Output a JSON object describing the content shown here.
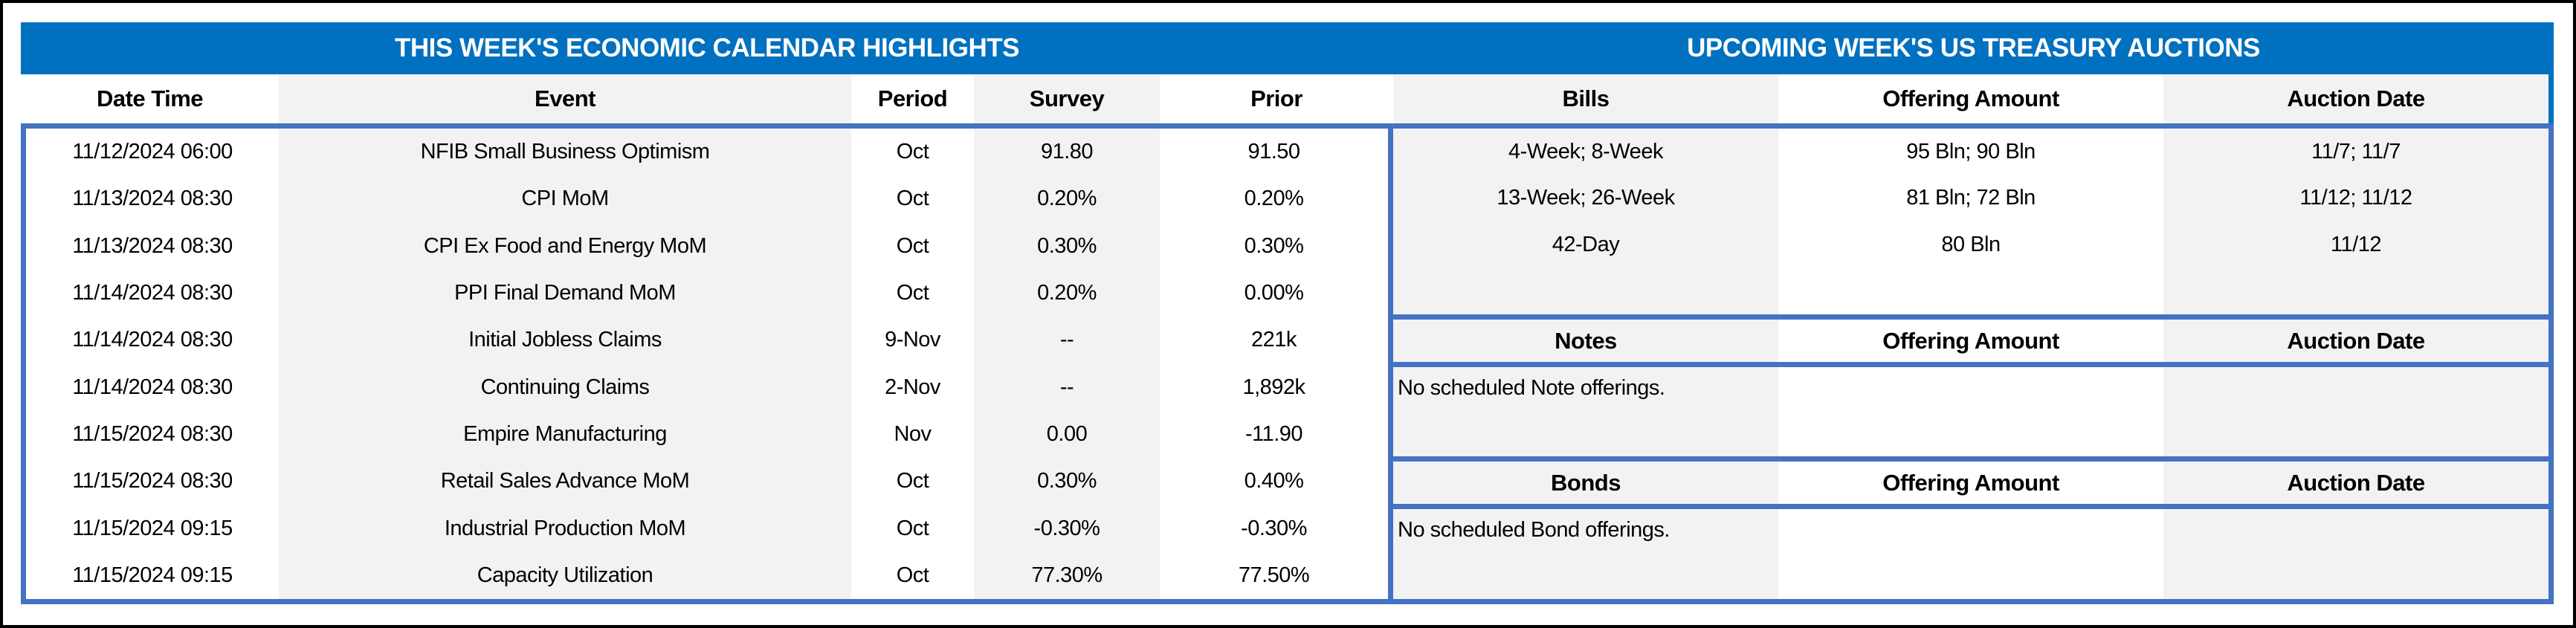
{
  "colors": {
    "title_bar": "#0070C0",
    "border_blue": "#4472C4",
    "stripe_gray": "#F2F2F2",
    "outer_border": "#000000"
  },
  "left_table": {
    "title": "THIS WEEK'S ECONOMIC CALENDAR HIGHLIGHTS",
    "columns": [
      "Date Time",
      "Event",
      "Period",
      "Survey",
      "Prior"
    ],
    "rows": [
      [
        "11/12/2024 06:00",
        "NFIB Small Business Optimism",
        "Oct",
        "91.80",
        "91.50"
      ],
      [
        "11/13/2024 08:30",
        "CPI MoM",
        "Oct",
        "0.20%",
        "0.20%"
      ],
      [
        "11/13/2024 08:30",
        "CPI Ex Food and Energy MoM",
        "Oct",
        "0.30%",
        "0.30%"
      ],
      [
        "11/14/2024 08:30",
        "PPI Final Demand MoM",
        "Oct",
        "0.20%",
        "0.00%"
      ],
      [
        "11/14/2024 08:30",
        "Initial Jobless Claims",
        "9-Nov",
        "--",
        "221k"
      ],
      [
        "11/14/2024 08:30",
        "Continuing Claims",
        "2-Nov",
        "--",
        "1,892k"
      ],
      [
        "11/15/2024 08:30",
        "Empire Manufacturing",
        "Nov",
        "0.00",
        "-11.90"
      ],
      [
        "11/15/2024 08:30",
        "Retail Sales Advance MoM",
        "Oct",
        "0.30%",
        "0.40%"
      ],
      [
        "11/15/2024 09:15",
        "Industrial Production MoM",
        "Oct",
        "-0.30%",
        "-0.30%"
      ],
      [
        "11/15/2024 09:15",
        "Capacity Utilization",
        "Oct",
        "77.30%",
        "77.50%"
      ]
    ]
  },
  "right_table": {
    "title": "UPCOMING WEEK'S US TREASURY AUCTIONS",
    "bills": {
      "columns": [
        "Bills",
        "Offering Amount",
        "Auction Date"
      ],
      "rows": [
        [
          "4-Week; 8-Week",
          "95 Bln; 90 Bln",
          "11/7; 11/7"
        ],
        [
          "13-Week; 26-Week",
          "81 Bln; 72 Bln",
          "11/12; 11/12"
        ],
        [
          "42-Day",
          "80 Bln",
          "11/12"
        ],
        [
          "",
          "",
          ""
        ]
      ]
    },
    "notes": {
      "columns": [
        "Notes",
        "Offering Amount",
        "Auction Date"
      ],
      "message": "No scheduled Note offerings."
    },
    "bonds": {
      "columns": [
        "Bonds",
        "Offering Amount",
        "Auction Date"
      ],
      "message": "No scheduled Bond offerings."
    }
  }
}
